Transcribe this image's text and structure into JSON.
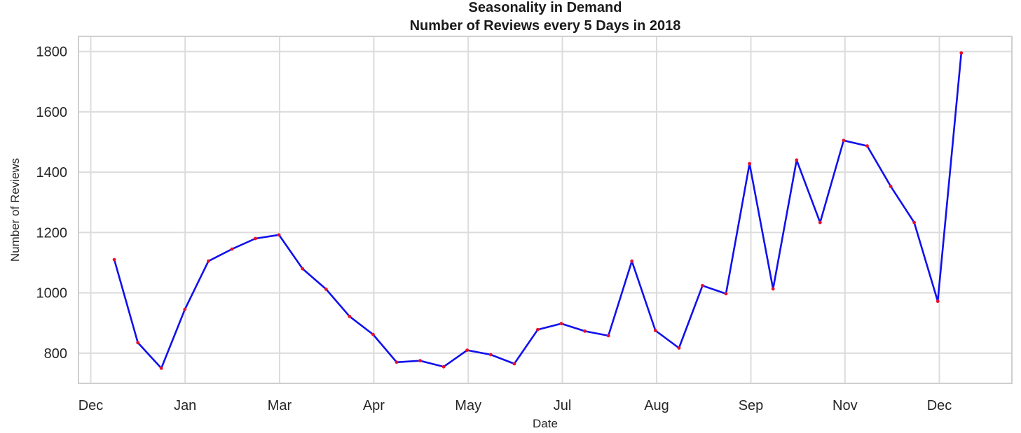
{
  "chart_data": {
    "type": "line",
    "title_line1": "Seasonality in Demand",
    "title_line2": "Number of Reviews every 5 Days in 2018",
    "xlabel": "Date",
    "ylabel": "Number of Reviews",
    "x_tick_labels": [
      "Dec",
      "Jan",
      "Mar",
      "Apr",
      "May",
      "Jul",
      "Aug",
      "Sep",
      "Nov",
      "Dec"
    ],
    "y_ticks": [
      800,
      1000,
      1200,
      1400,
      1600,
      1800
    ],
    "ylim": [
      700,
      1850
    ],
    "grid": true,
    "line_color": "#1010ee",
    "marker_color": "#e8102a",
    "series": [
      {
        "x": [
          1,
          2,
          3,
          4,
          5,
          6,
          7,
          8,
          9,
          10,
          11,
          12,
          13,
          14,
          15,
          16,
          17,
          18,
          19,
          20,
          21,
          22,
          23,
          24,
          25,
          26,
          27,
          28,
          29,
          30,
          31,
          32,
          33,
          34,
          35,
          36,
          37
        ],
        "values": [
          1110,
          835,
          750,
          945,
          1105,
          1145,
          1180,
          1192,
          1080,
          1012,
          922,
          862,
          770,
          775,
          755,
          810,
          795,
          765,
          878,
          898,
          873,
          858,
          1105,
          875,
          817,
          1024,
          997,
          1428,
          1013,
          1440,
          1233,
          1505,
          1487,
          1353,
          1233,
          972,
          1795
        ]
      }
    ]
  }
}
